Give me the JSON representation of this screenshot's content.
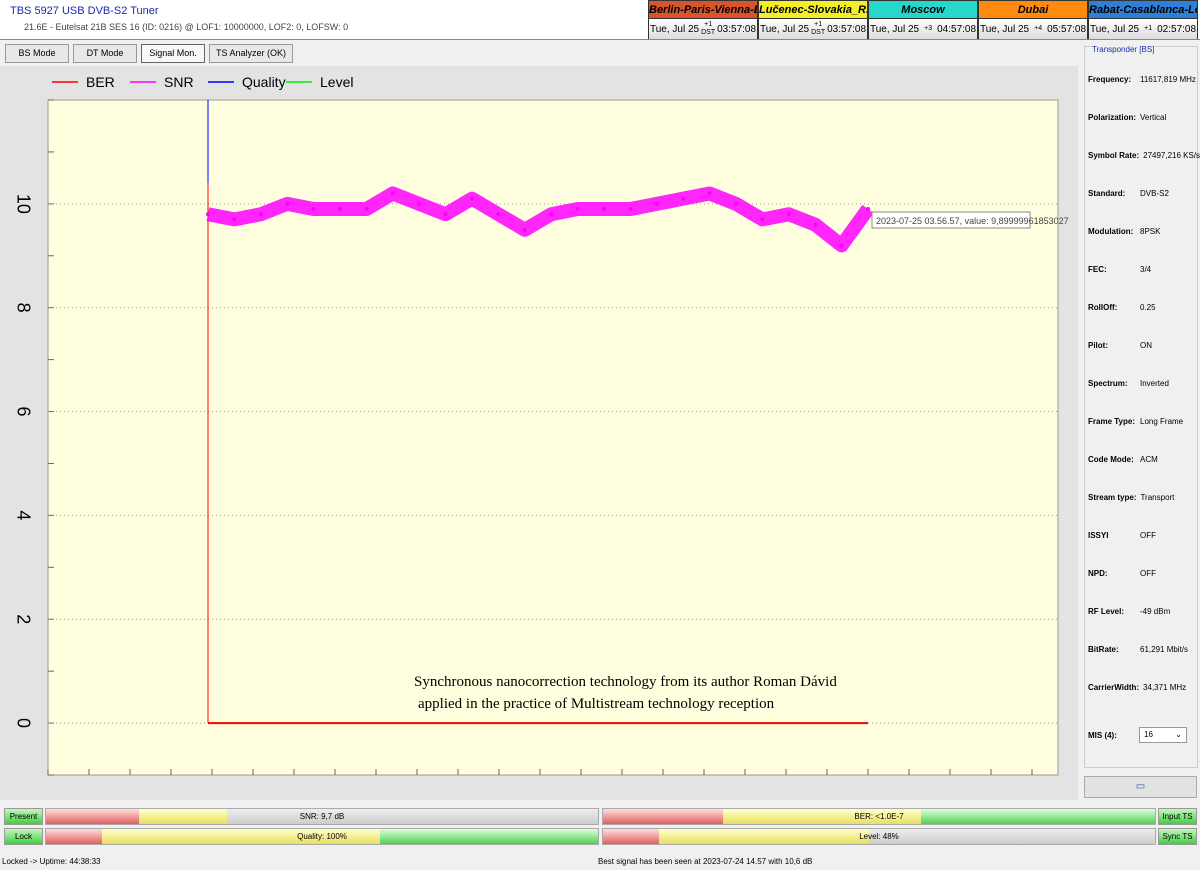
{
  "header": {
    "title": "TBS 5927 USB DVB-S2 Tuner",
    "subtitle": "21.6E - Eutelsat 21B  SES 16 (ID: 0216) @ LOF1: 10000000, LOF2: 0, LOFSW: 0"
  },
  "clocks": [
    {
      "name": "Berlin-Paris-Vienna-Belgrade",
      "date": "Tue, Jul 25",
      "offset": "+1 DST",
      "time": "03:57:08",
      "color": "#d9532b"
    },
    {
      "name": "Lučenec-Slovakia_R.Dávid",
      "date": "Tue, Jul 25",
      "offset": "+1 DST",
      "time": "03:57:08",
      "color": "#f3ee2a"
    },
    {
      "name": "Moscow",
      "date": "Tue, Jul 25",
      "offset": "+3",
      "time": "04:57:08",
      "color": "#28d7cc"
    },
    {
      "name": "Dubai",
      "date": "Tue, Jul 25",
      "offset": "+4",
      "time": "05:57:08",
      "color": "#ff8a10"
    },
    {
      "name": "Rabat-Casablanca-London",
      "date": "Tue, Jul 25",
      "offset": "+1",
      "time": "02:57:08",
      "color": "#2d7fd8"
    }
  ],
  "tabs": [
    "BS Mode",
    "DT Mode",
    "Signal Mon.",
    "TS Analyzer (OK)"
  ],
  "chart_data": {
    "type": "line",
    "ylim": [
      -1,
      12
    ],
    "yticks": [
      0,
      2,
      4,
      6,
      8,
      10
    ],
    "grid": true,
    "legend": "top-left",
    "series": [
      {
        "name": "BER",
        "color": "#ff0000",
        "values": [
          0,
          0,
          0,
          0,
          0,
          0,
          0,
          0,
          0,
          0,
          0,
          0,
          0,
          0,
          0,
          0,
          0,
          0,
          0,
          0,
          0,
          0,
          0,
          0,
          0,
          0
        ]
      },
      {
        "name": "SNR",
        "color": "#ff00ff",
        "values": [
          9.8,
          9.7,
          9.8,
          10.0,
          9.9,
          9.9,
          9.9,
          10.2,
          10.0,
          9.8,
          10.1,
          9.8,
          9.5,
          9.8,
          9.9,
          9.9,
          9.9,
          10.0,
          10.1,
          10.2,
          10.0,
          9.7,
          9.8,
          9.6,
          9.2,
          9.9
        ]
      },
      {
        "name": "Quality",
        "color": "#0000ff",
        "values": []
      },
      {
        "name": "Level",
        "color": "#00ee00",
        "values": []
      }
    ],
    "tooltip": "2023-07-25 03.56.57, value: 9,89999961853027",
    "annotation": [
      "Synchronous nanocorrection technology from its author Roman Dávid",
      "applied in the practice of Multistream technology reception"
    ]
  },
  "transponder": {
    "legend": "Transponder [BS]",
    "rows": [
      [
        "Frequency:",
        "11617,819 MHz"
      ],
      [
        "Polarization:",
        "Vertical"
      ],
      [
        "Symbol Rate:",
        "27497,216 KS/s"
      ],
      [
        "Standard:",
        "DVB-S2"
      ],
      [
        "Modulation:",
        "8PSK"
      ],
      [
        "FEC:",
        "3/4"
      ],
      [
        "RollOff:",
        "0.25"
      ],
      [
        "Pilot:",
        "ON"
      ],
      [
        "Spectrum:",
        "Inverted"
      ],
      [
        "Frame Type:",
        "Long Frame"
      ],
      [
        "Code Mode:",
        "ACM"
      ],
      [
        "Stream type:",
        "Transport"
      ],
      [
        "ISSYI",
        "OFF"
      ],
      [
        "NPD:",
        "OFF"
      ],
      [
        "RF Level:",
        "-49 dBm"
      ],
      [
        "BitRate:",
        "61,291 Mbit/s"
      ],
      [
        "CarrierWidth:",
        "34,371 MHz"
      ]
    ],
    "mis_label": "MIS (4):",
    "mis_value": "16"
  },
  "indicators": {
    "present": "Present",
    "lock": "Lock",
    "input_ts": "Input TS",
    "sync_ts": "Sync TS",
    "snr": {
      "label": "SNR: 9,7 dB",
      "value": 0.25
    },
    "ber": {
      "label": "BER: <1.0E-7",
      "value": 1.0
    },
    "quality": {
      "label": "Quality: 100%",
      "value": 1.0
    },
    "level": {
      "label": "Level: 48%",
      "value": 0.48
    }
  },
  "status": {
    "left": "Locked -> Uptime: 44:38:33",
    "center": "Best signal has been seen at 2023-07-24 14.57 with 10,6 dB"
  }
}
